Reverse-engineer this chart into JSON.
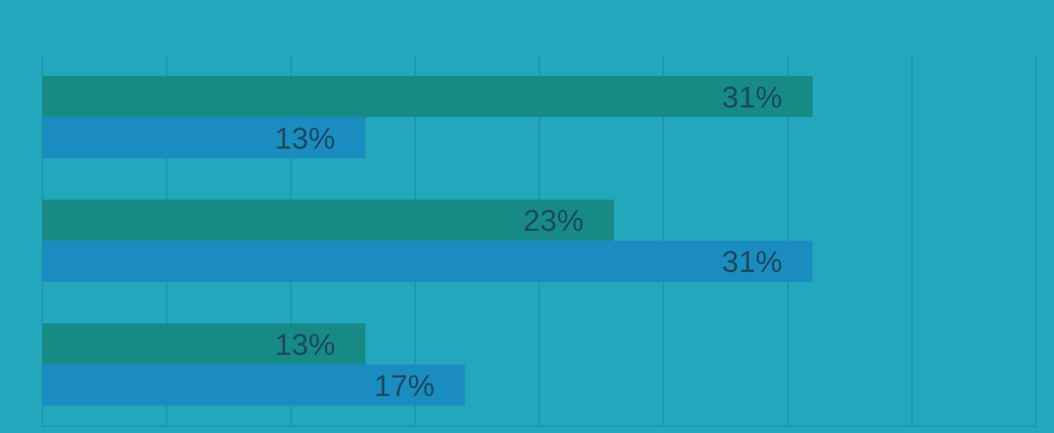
{
  "chart_data": {
    "type": "bar",
    "orientation": "horizontal",
    "categories": [
      null,
      null,
      null
    ],
    "series": [
      {
        "color": "#178a86",
        "values": [
          31,
          23,
          13
        ],
        "value_labels": [
          "31%",
          "23%",
          "13%"
        ]
      },
      {
        "color": "#1a8cc0",
        "values": [
          13,
          31,
          17
        ],
        "value_labels": [
          "13%",
          "31%",
          "17%"
        ]
      }
    ],
    "xlim": [
      0,
      40
    ],
    "xticks": [
      {
        "value": 0,
        "label": null
      },
      {
        "value": 5,
        "label": null
      },
      {
        "value": 10,
        "label": null
      },
      {
        "value": 15,
        "label": null
      },
      {
        "value": 20,
        "label": null
      },
      {
        "value": 25,
        "label": null
      },
      {
        "value": 30,
        "label": null
      },
      {
        "value": 35,
        "label": null
      },
      {
        "value": 40,
        "label": null
      }
    ],
    "tick_labels": false,
    "grid": "x",
    "legend": false
  }
}
